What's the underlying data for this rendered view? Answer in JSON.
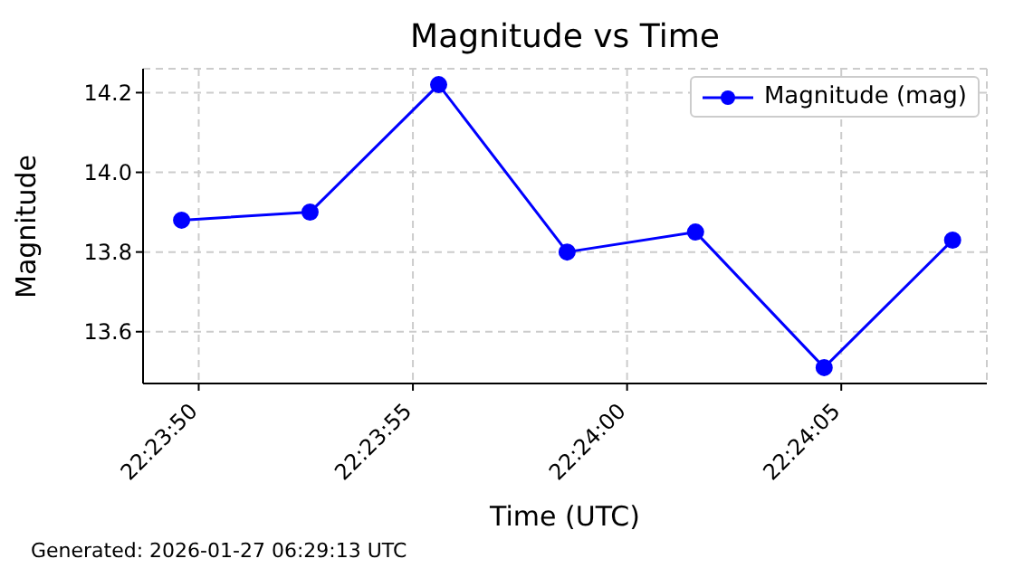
{
  "chart_data": {
    "type": "line",
    "title": "Magnitude vs Time",
    "xlabel": "Time (UTC)",
    "ylabel": "Magnitude",
    "x": [
      22.397111,
      22.397944,
      22.398778,
      22.399611,
      22.400444,
      22.401278,
      22.402111
    ],
    "series": [
      {
        "name": "Magnitude (mag)",
        "color": "#0000ff",
        "values": [
          13.88,
          13.9,
          14.22,
          13.8,
          13.85,
          13.51,
          13.83
        ]
      }
    ],
    "xlim": [
      22.396861,
      22.402333
    ],
    "xticks": [
      {
        "value": 22.397222,
        "label": "22:23:50"
      },
      {
        "value": 22.398611,
        "label": "22:23:55"
      },
      {
        "value": 22.4,
        "label": "22:24:00"
      },
      {
        "value": 22.401389,
        "label": "22:24:05"
      }
    ],
    "ylim": [
      13.47,
      14.26
    ],
    "yticks": [
      {
        "value": 13.6,
        "label": "13.6"
      },
      {
        "value": 13.8,
        "label": "13.8"
      },
      {
        "value": 14.0,
        "label": "14.0"
      },
      {
        "value": 14.2,
        "label": "14.2"
      }
    ],
    "grid": true,
    "legend": "top right",
    "marker": "circle",
    "line_style": "solid",
    "annotations": [
      "Generated: 2026-01-27 06:29:13 UTC"
    ]
  }
}
